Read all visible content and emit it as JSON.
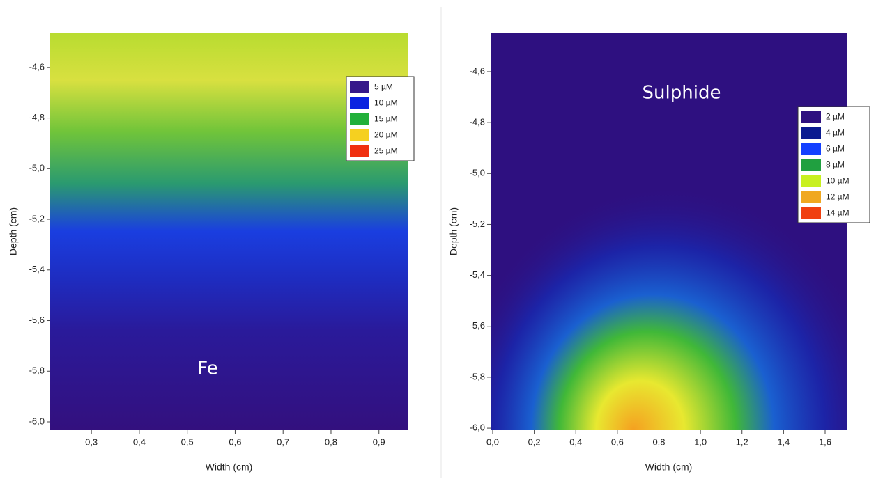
{
  "chart_data": [
    {
      "type": "heatmap",
      "annotation": "Fe",
      "x_label": "Width (cm)",
      "y_label": "Depth (cm)",
      "xlim": [
        0.214,
        0.96
      ],
      "xticks": [
        {
          "value": 0.3,
          "label": "0,3"
        },
        {
          "value": 0.4,
          "label": "0,4"
        },
        {
          "value": 0.5,
          "label": "0,5"
        },
        {
          "value": 0.6,
          "label": "0,6"
        },
        {
          "value": 0.7,
          "label": "0,7"
        },
        {
          "value": 0.8,
          "label": "0,8"
        },
        {
          "value": 0.9,
          "label": "0,9"
        }
      ],
      "ylim": [
        -6.033,
        -4.463
      ],
      "yticks": [
        {
          "value": -4.6,
          "label": "-4,6"
        },
        {
          "value": -4.8,
          "label": "-4,8"
        },
        {
          "value": -5.0,
          "label": "-5,0"
        },
        {
          "value": -5.2,
          "label": "-5,2"
        },
        {
          "value": -5.4,
          "label": "-5,4"
        },
        {
          "value": -5.6,
          "label": "-5,6"
        },
        {
          "value": -5.8,
          "label": "-5,8"
        },
        {
          "value": -6.0,
          "label": "-6,0"
        }
      ],
      "legend_items": [
        {
          "label": "5 µM",
          "color": "#35188a"
        },
        {
          "label": "10 µM",
          "color": "#0a22e0"
        },
        {
          "label": "15 µM",
          "color": "#22b03a"
        },
        {
          "label": "20 µM",
          "color": "#f5d020"
        },
        {
          "label": "25 µM",
          "color": "#f03010"
        }
      ],
      "legend_position": "upper right"
    },
    {
      "type": "heatmap",
      "annotation": "Sulphide",
      "x_label": "Width (cm)",
      "y_label": "Depth (cm)",
      "xlim": [
        -0.01,
        1.704
      ],
      "xticks": [
        {
          "value": 0.0,
          "label": "0,0"
        },
        {
          "value": 0.2,
          "label": "0,2"
        },
        {
          "value": 0.4,
          "label": "0,4"
        },
        {
          "value": 0.6,
          "label": "0,6"
        },
        {
          "value": 0.8,
          "label": "0,8"
        },
        {
          "value": 1.0,
          "label": "1,0"
        },
        {
          "value": 1.2,
          "label": "1,2"
        },
        {
          "value": 1.4,
          "label": "1,4"
        },
        {
          "value": 1.6,
          "label": "1,6"
        }
      ],
      "ylim": [
        -6.008,
        -4.447
      ],
      "yticks": [
        {
          "value": -4.6,
          "label": "-4,6"
        },
        {
          "value": -4.8,
          "label": "-4,8"
        },
        {
          "value": -5.0,
          "label": "-5,0"
        },
        {
          "value": -5.2,
          "label": "-5,2"
        },
        {
          "value": -5.4,
          "label": "-5,4"
        },
        {
          "value": -5.6,
          "label": "-5,6"
        },
        {
          "value": -5.8,
          "label": "-5,8"
        },
        {
          "value": -6.0,
          "label": "-6,0"
        }
      ],
      "legend_items": [
        {
          "label": "2 µM",
          "color": "#2e1080"
        },
        {
          "label": "4 µM",
          "color": "#0a1a90"
        },
        {
          "label": "6 µM",
          "color": "#1440ff"
        },
        {
          "label": "8 µM",
          "color": "#20a040"
        },
        {
          "label": "10 µM",
          "color": "#c8f020"
        },
        {
          "label": "12 µM",
          "color": "#f0a820"
        },
        {
          "label": "14 µM",
          "color": "#f04010"
        }
      ],
      "legend_position": "upper right"
    }
  ]
}
